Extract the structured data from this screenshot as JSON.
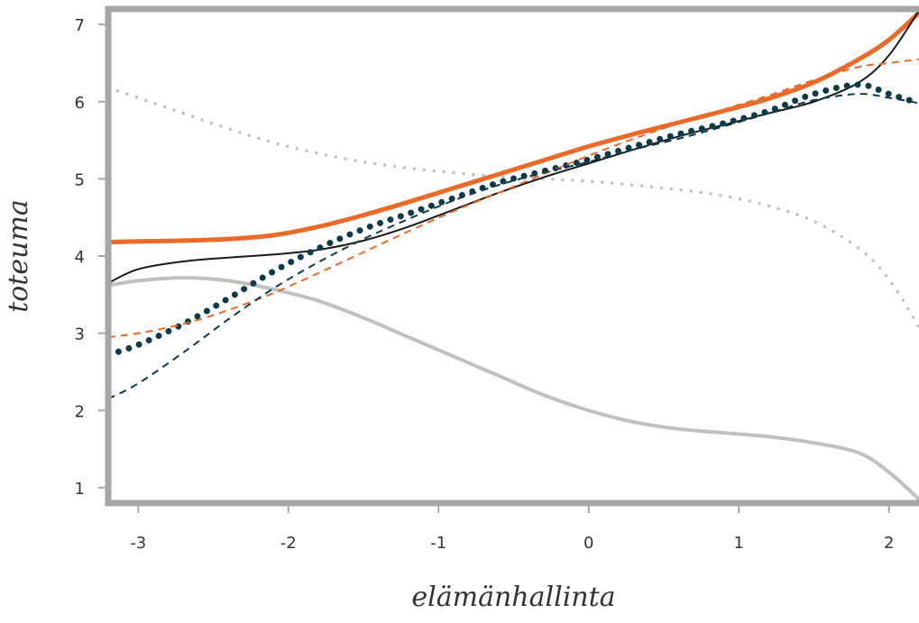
{
  "chart_data": {
    "type": "line",
    "title": "",
    "xlabel": "elämänhallinta",
    "ylabel": "toteuma",
    "xlim": [
      -3.2,
      2.2
    ],
    "ylim": [
      0.8,
      7.2
    ],
    "xticks": [
      -3,
      -2,
      -1,
      0,
      1,
      2
    ],
    "yticks": [
      1,
      2,
      3,
      4,
      5,
      6,
      7
    ],
    "xtick_labels": [
      "-3",
      "-2",
      "-1",
      "0",
      "1",
      "2"
    ],
    "ytick_labels": [
      "1",
      "2",
      "3",
      "4",
      "5",
      "6",
      "7"
    ],
    "grid": false,
    "legend": "none",
    "series": [
      {
        "style": "solid-light-grey",
        "color": "#c0c0c0",
        "x": [
          -3.2,
          -3.0,
          -2.7,
          -2.4,
          -2.1,
          -1.8,
          -1.5,
          -1.2,
          -0.9,
          -0.6,
          -0.3,
          0.0,
          0.3,
          0.6,
          0.9,
          1.2,
          1.5,
          1.8,
          2.0,
          2.2
        ],
        "y": [
          3.62,
          3.68,
          3.72,
          3.68,
          3.57,
          3.42,
          3.2,
          2.95,
          2.7,
          2.45,
          2.2,
          2.0,
          1.85,
          1.76,
          1.71,
          1.66,
          1.58,
          1.45,
          1.2,
          0.85
        ]
      },
      {
        "style": "dotted-light-grey",
        "color": "#c0c0c0",
        "x": [
          -3.2,
          -3.0,
          -2.7,
          -2.4,
          -2.1,
          -1.8,
          -1.5,
          -1.2,
          -0.9,
          -0.6,
          -0.3,
          0.0,
          0.3,
          0.6,
          0.9,
          1.2,
          1.5,
          1.8,
          2.0,
          2.2
        ],
        "y": [
          6.18,
          6.05,
          5.85,
          5.65,
          5.47,
          5.33,
          5.22,
          5.14,
          5.08,
          5.03,
          5.0,
          4.97,
          4.92,
          4.86,
          4.78,
          4.65,
          4.45,
          4.1,
          3.7,
          3.08
        ]
      },
      {
        "style": "solid-thick-orange",
        "color": "#ea6a2a",
        "x": [
          -3.2,
          -3.0,
          -2.7,
          -2.4,
          -2.1,
          -1.8,
          -1.5,
          -1.2,
          -0.9,
          -0.6,
          -0.3,
          0.0,
          0.3,
          0.6,
          0.9,
          1.2,
          1.5,
          1.8,
          2.0,
          2.2
        ],
        "y": [
          4.18,
          4.19,
          4.2,
          4.22,
          4.27,
          4.38,
          4.53,
          4.7,
          4.88,
          5.06,
          5.24,
          5.42,
          5.58,
          5.73,
          5.88,
          6.04,
          6.25,
          6.55,
          6.8,
          7.15
        ]
      },
      {
        "style": "solid-thin-black",
        "color": "#1a1a1a",
        "x": [
          -3.2,
          -3.0,
          -2.7,
          -2.4,
          -2.1,
          -1.8,
          -1.5,
          -1.2,
          -0.9,
          -0.6,
          -0.3,
          0.0,
          0.3,
          0.6,
          0.9,
          1.2,
          1.5,
          1.8,
          2.0,
          2.2
        ],
        "y": [
          3.65,
          3.83,
          3.93,
          3.98,
          4.02,
          4.08,
          4.2,
          4.38,
          4.6,
          4.82,
          5.02,
          5.2,
          5.38,
          5.55,
          5.7,
          5.85,
          6.0,
          6.25,
          6.6,
          7.18
        ]
      },
      {
        "style": "dotted-thick-navy",
        "color": "#0f3a4a",
        "x": [
          -3.2,
          -3.0,
          -2.7,
          -2.4,
          -2.1,
          -1.8,
          -1.5,
          -1.2,
          -0.9,
          -0.6,
          -0.3,
          0.0,
          0.3,
          0.6,
          0.9,
          1.2,
          1.5,
          1.8,
          2.0,
          2.2
        ],
        "y": [
          2.72,
          2.85,
          3.12,
          3.45,
          3.8,
          4.1,
          4.35,
          4.55,
          4.75,
          4.95,
          5.1,
          5.25,
          5.42,
          5.58,
          5.72,
          5.88,
          6.1,
          6.22,
          6.1,
          5.98
        ]
      },
      {
        "style": "dashed-orange",
        "color": "#ea6a2a",
        "x": [
          -3.2,
          -3.0,
          -2.7,
          -2.4,
          -2.1,
          -1.8,
          -1.5,
          -1.2,
          -0.9,
          -0.6,
          -0.3,
          0.0,
          0.3,
          0.6,
          0.9,
          1.2,
          1.5,
          1.8,
          2.0,
          2.2
        ],
        "y": [
          2.95,
          3.0,
          3.12,
          3.3,
          3.52,
          3.78,
          4.05,
          4.32,
          4.58,
          4.82,
          5.06,
          5.3,
          5.52,
          5.72,
          5.9,
          6.08,
          6.28,
          6.45,
          6.5,
          6.55
        ]
      },
      {
        "style": "dashed-navy",
        "color": "#0f3a4a",
        "x": [
          -3.2,
          -3.0,
          -2.7,
          -2.4,
          -2.1,
          -1.8,
          -1.5,
          -1.2,
          -0.9,
          -0.6,
          -0.3,
          0.0,
          0.3,
          0.6,
          0.9,
          1.2,
          1.5,
          1.8,
          2.0,
          2.2
        ],
        "y": [
          2.15,
          2.35,
          2.75,
          3.18,
          3.58,
          3.92,
          4.22,
          4.48,
          4.72,
          4.92,
          5.08,
          5.22,
          5.38,
          5.52,
          5.68,
          5.85,
          6.02,
          6.1,
          6.05,
          5.98
        ]
      }
    ]
  }
}
